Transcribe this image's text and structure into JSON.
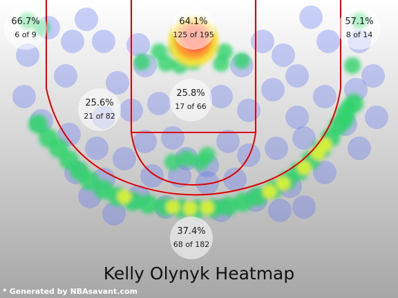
{
  "chart_data": {
    "type": "heatmap",
    "title": "Kelly Olynyk Heatmap",
    "footer": "* Generated by NBAsavant.com",
    "colors": {
      "court_line": "#e00000",
      "background_top": "#ffffff",
      "background_bottom": "#a6a6a6"
    },
    "zones": [
      {
        "name": "left-corner-three",
        "pct": "66.7%",
        "made_attempts": "6 of 9",
        "made": 6,
        "attempts": 9
      },
      {
        "name": "restricted-area",
        "pct": "64.1%",
        "made_attempts": "125 of 195",
        "made": 125,
        "attempts": 195
      },
      {
        "name": "right-corner-three",
        "pct": "57.1%",
        "made_attempts": "8 of 14",
        "made": 8,
        "attempts": 14
      },
      {
        "name": "mid-range",
        "pct": "25.6%",
        "made_attempts": "21 of 82",
        "made": 21,
        "attempts": 82
      },
      {
        "name": "paint-non-ra",
        "pct": "25.8%",
        "made_attempts": "17 of 66",
        "made": 17,
        "attempts": 66
      },
      {
        "name": "above-break-three",
        "pct": "37.4%",
        "made_attempts": "68 of 182",
        "made": 68,
        "attempts": 182
      }
    ]
  }
}
